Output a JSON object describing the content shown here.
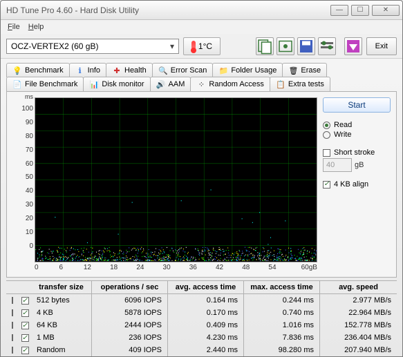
{
  "window": {
    "title": "HD Tune Pro 4.60 - Hard Disk Utility"
  },
  "menu": {
    "file": "File",
    "help": "Help"
  },
  "toolbar": {
    "drive": "OCZ-VERTEX2 (60 gB)",
    "temperature": "1°C",
    "exit": "Exit"
  },
  "tabs_row1": [
    {
      "label": "Benchmark",
      "icon": "bulb"
    },
    {
      "label": "Info",
      "icon": "info"
    },
    {
      "label": "Health",
      "icon": "health"
    },
    {
      "label": "Error Scan",
      "icon": "search"
    },
    {
      "label": "Folder Usage",
      "icon": "folder"
    },
    {
      "label": "Erase",
      "icon": "trash"
    }
  ],
  "tabs_row2": [
    {
      "label": "File Benchmark",
      "icon": "file"
    },
    {
      "label": "Disk monitor",
      "icon": "monitor"
    },
    {
      "label": "AAM",
      "icon": "speaker"
    },
    {
      "label": "Random Access",
      "icon": "random",
      "active": true
    },
    {
      "label": "Extra tests",
      "icon": "extra"
    }
  ],
  "sidepanel": {
    "start": "Start",
    "read": "Read",
    "write": "Write",
    "short_stroke": "Short stroke",
    "short_stroke_val": "40",
    "short_stroke_unit": "gB",
    "align": "4 KB align"
  },
  "chart": {
    "ylabel_unit": "ms",
    "ylim": [
      0,
      100
    ],
    "yticks": [
      100.0,
      90.0,
      80.0,
      70.0,
      60.0,
      50.0,
      40.0,
      30.0,
      20.0,
      10.0,
      0
    ],
    "xticks": [
      "0",
      "6",
      "12",
      "18",
      "24",
      "30",
      "36",
      "42",
      "48",
      "54",
      "60gB"
    ],
    "background": "#000000",
    "grid_color": "#00a000",
    "scatter_colors": {
      "512": "#ffff00",
      "4k": "#ffffff",
      "64k": "#00ff00",
      "1m": "#4060ff",
      "rnd": "#00ffff"
    }
  },
  "table": {
    "headers": {
      "size": "transfer size",
      "ops": "operations / sec",
      "acc": "avg. access time",
      "max": "max. access time",
      "spd": "avg. speed"
    },
    "rows": [
      {
        "color": "#ffff00",
        "size": "512 bytes",
        "ops": "6096 IOPS",
        "acc": "0.164 ms",
        "max": "0.244 ms",
        "spd": "2.977 MB/s"
      },
      {
        "color": "#ffffff",
        "size": "4 KB",
        "ops": "5878 IOPS",
        "acc": "0.170 ms",
        "max": "0.740 ms",
        "spd": "22.964 MB/s"
      },
      {
        "color": "#00ff00",
        "size": "64 KB",
        "ops": "2444 IOPS",
        "acc": "0.409 ms",
        "max": "1.016 ms",
        "spd": "152.778 MB/s"
      },
      {
        "color": "#4060ff",
        "size": "1 MB",
        "ops": "236 IOPS",
        "acc": "4.230 ms",
        "max": "7.836 ms",
        "spd": "236.404 MB/s"
      },
      {
        "color": "#00ffff",
        "size": "Random",
        "ops": "409 IOPS",
        "acc": "2.440 ms",
        "max": "98.280 ms",
        "spd": "207.940 MB/s"
      }
    ]
  }
}
